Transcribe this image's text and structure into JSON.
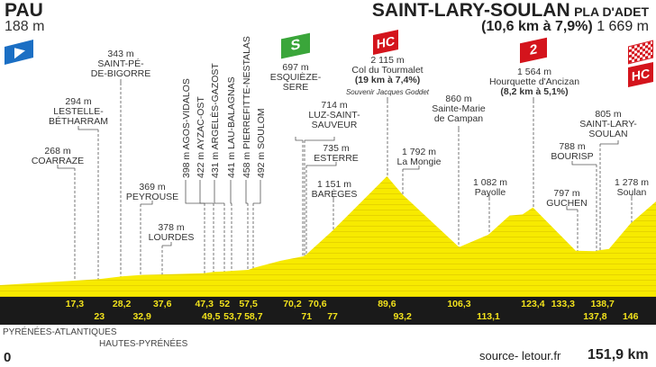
{
  "header": {
    "start_name": "PAU",
    "start_alt": "188 m",
    "finish_name": "SAINT-LARY-SOULAN",
    "finish_sub": "PLA D'ADET",
    "finish_climb": "(10,6 km à 7,9%)",
    "finish_alt": "1 669 m"
  },
  "badges": {
    "sprint": "S",
    "hc": "HC",
    "cat2": "2",
    "finish_hc": "HC"
  },
  "places": [
    {
      "alt": "268 m",
      "name": "COARRAZE"
    },
    {
      "alt": "294 m",
      "name": "LESTELLE-",
      "name2": "BÉTHARRAM"
    },
    {
      "alt": "343 m",
      "name": "SAINT-PÉ-",
      "name2": "DE-BIGORRE"
    },
    {
      "alt": "369 m",
      "name": "PEYROUSE"
    },
    {
      "alt": "378 m",
      "name": "LOURDES"
    },
    {
      "alt": "398 m",
      "name": "AGOS-VIDALOS"
    },
    {
      "alt": "422 m",
      "name": "AYZAC-OST"
    },
    {
      "alt": "431 m",
      "name": "ARGELÈS-GAZOST"
    },
    {
      "alt": "441 m",
      "name": "LAU-BALAGNAS"
    },
    {
      "alt": "458 m",
      "name": "PIERREFITTE-NESTALAS"
    },
    {
      "alt": "492 m",
      "name": "SOULOM"
    },
    {
      "alt": "697 m",
      "name": "ESQUIÈZE-",
      "name2": "SERE"
    },
    {
      "alt": "714 m",
      "name": "LUZ-SAINT-",
      "name2": "SAUVEUR"
    },
    {
      "alt": "735 m",
      "name": "ESTERRE"
    },
    {
      "alt": "1 151 m",
      "name": "BARÈGES"
    },
    {
      "alt": "2 115 m",
      "name": "Col du Tourmalet",
      "climb": "(19 km à 7,4%)",
      "note": "Souvenir Jacques Goddet"
    },
    {
      "alt": "1 792 m",
      "name": "La Mongie"
    },
    {
      "alt": "860 m",
      "name": "Sainte-Marie",
      "name2": "de Campan"
    },
    {
      "alt": "1 082 m",
      "name": "Payolle"
    },
    {
      "alt": "1 564 m",
      "name": "Hourquette d'Ancizan",
      "climb": "(8,2 km à 5,1%)"
    },
    {
      "alt": "797 m",
      "name": "GUCHEN"
    },
    {
      "alt": "788 m",
      "name": "BOURISP"
    },
    {
      "alt": "805 m",
      "name": "SAINT-LARY-",
      "name2": "SOULAN"
    },
    {
      "alt": "1 278 m",
      "name": "Soulan"
    }
  ],
  "footer": {
    "dept1": "PYRÉNÉES-ATLANTIQUES",
    "dept2": "HAUTES-PYRÉNÉES",
    "start_km": "0",
    "source": "source- letour.fr",
    "total": "151,9 km"
  },
  "chart_data": {
    "type": "area",
    "x_unit": "km",
    "y_unit": "m",
    "xlim": [
      0,
      151.9
    ],
    "km_labels": [
      "17,3",
      "23",
      "28,2",
      "32,9",
      "37,6",
      "47,3",
      "49,5",
      "52",
      "53,7",
      "57,5",
      "58,7",
      "70,2",
      "70,6",
      "71",
      "77",
      "89,6",
      "93,2",
      "106,3",
      "113,1",
      "123,4",
      "133,3",
      "137,8",
      "138,7",
      "146"
    ],
    "points": [
      {
        "km": 0,
        "alt": 188
      },
      {
        "km": 17.3,
        "alt": 268
      },
      {
        "km": 23,
        "alt": 294
      },
      {
        "km": 28.2,
        "alt": 343
      },
      {
        "km": 32.9,
        "alt": 369
      },
      {
        "km": 37.6,
        "alt": 378
      },
      {
        "km": 47.3,
        "alt": 398
      },
      {
        "km": 49.5,
        "alt": 422
      },
      {
        "km": 52,
        "alt": 431
      },
      {
        "km": 53.7,
        "alt": 441
      },
      {
        "km": 57.5,
        "alt": 458
      },
      {
        "km": 58.7,
        "alt": 492
      },
      {
        "km": 65,
        "alt": 620
      },
      {
        "km": 70.2,
        "alt": 697
      },
      {
        "km": 70.6,
        "alt": 714
      },
      {
        "km": 71,
        "alt": 735
      },
      {
        "km": 77,
        "alt": 1151
      },
      {
        "km": 89.6,
        "alt": 2115
      },
      {
        "km": 93.2,
        "alt": 1792
      },
      {
        "km": 106.3,
        "alt": 860
      },
      {
        "km": 113.1,
        "alt": 1082
      },
      {
        "km": 118,
        "alt": 1420
      },
      {
        "km": 121,
        "alt": 1440
      },
      {
        "km": 123.4,
        "alt": 1564
      },
      {
        "km": 133.3,
        "alt": 797
      },
      {
        "km": 137.8,
        "alt": 788
      },
      {
        "km": 138.7,
        "alt": 805
      },
      {
        "km": 141,
        "alt": 830
      },
      {
        "km": 146,
        "alt": 1278
      },
      {
        "km": 151.9,
        "alt": 1669
      }
    ],
    "fill_color": "#f5e600",
    "band_color": "#1a1a1a",
    "km_label_color": "#f2e21c"
  }
}
